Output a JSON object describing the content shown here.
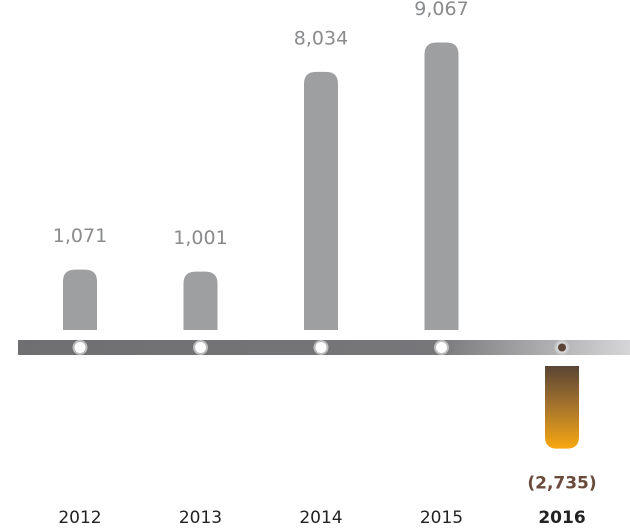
{
  "chart_data": {
    "type": "bar",
    "categories": [
      "2012",
      "2013",
      "2014",
      "2015",
      "2016"
    ],
    "values": [
      1071,
      1001,
      8034,
      9067,
      -2735
    ],
    "value_labels": [
      "1,071",
      "1,001",
      "8,034",
      "9,067",
      "(2,735)"
    ],
    "colors": [
      "#9e9fa1",
      "#9e9fa1",
      "#9e9fa1",
      "#9e9fa1",
      "#f7a70f"
    ]
  }
}
